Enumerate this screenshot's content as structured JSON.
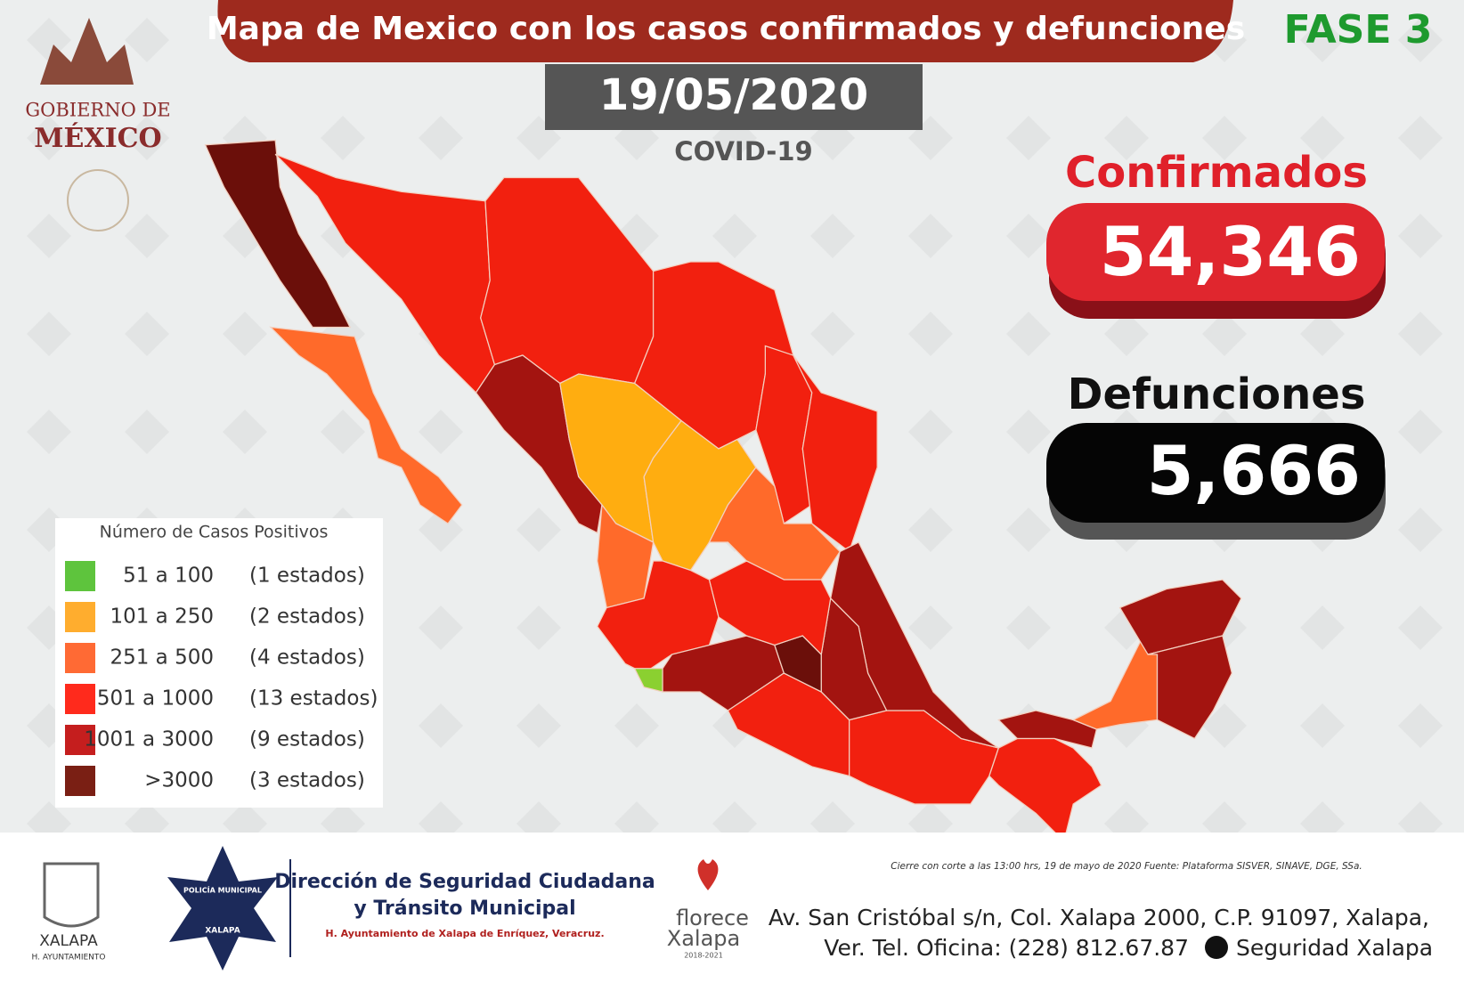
{
  "logo": {
    "line1": "GOBIERNO DE",
    "line2": "MÉXICO"
  },
  "header": {
    "title": "Mapa de Mexico con los casos confirmados y defunciones",
    "date": "19/05/2020",
    "subtitle": "COVID-19",
    "phase": "FASE 3"
  },
  "stats": {
    "confirmed_label": "Confirmados",
    "confirmed": "54,346",
    "deaths_label": "Defunciones",
    "deaths": "5,666"
  },
  "legend": {
    "title": "Número de Casos Positivos",
    "items": [
      {
        "range": "51 a 100",
        "count": "(1 estados)",
        "color": "#5ec43d"
      },
      {
        "range": "101 a 250",
        "count": "(2 estados)",
        "color": "#ffad2e"
      },
      {
        "range": "251 a 500",
        "count": "(4 estados)",
        "color": "#ff6a34"
      },
      {
        "range": "501 a 1000",
        "count": "(13 estados)",
        "color": "#ff2a1c"
      },
      {
        "range": "1001 a 3000",
        "count": "(9 estados)",
        "color": "#c51e1e"
      },
      {
        "range": ">3000",
        "count": "(3 estados)",
        "color": "#7a1f14"
      }
    ]
  },
  "source": "Cierre con corte a las 13:00 hrs, 19 de mayo de 2020  Fuente: Plataforma SISVER, SINAVE, DGE, SSa.",
  "footer": {
    "xalapa": "XALAPA",
    "ayuntamiento": "H. AYUNTAMIENTO",
    "badge_top": "POLICÍA MUNICIPAL",
    "badge_bottom": "XALAPA",
    "org_line1": "Dirección de Seguridad Ciudadana",
    "org_line2": "y Tránsito Municipal",
    "org_line3": "H. Ayuntamiento de Xalapa de Enríquez, Veracruz.",
    "florece": "florece",
    "florece_city": "Xalapa",
    "florece_years": "2018-2021",
    "address1": "Av. San Cristóbal s/n, Col. Xalapa 2000, C.P. 91097, Xalapa,",
    "address2": "Ver. Tel. Oficina: (228) 812.67.87",
    "social": "Seguridad Xalapa"
  }
}
